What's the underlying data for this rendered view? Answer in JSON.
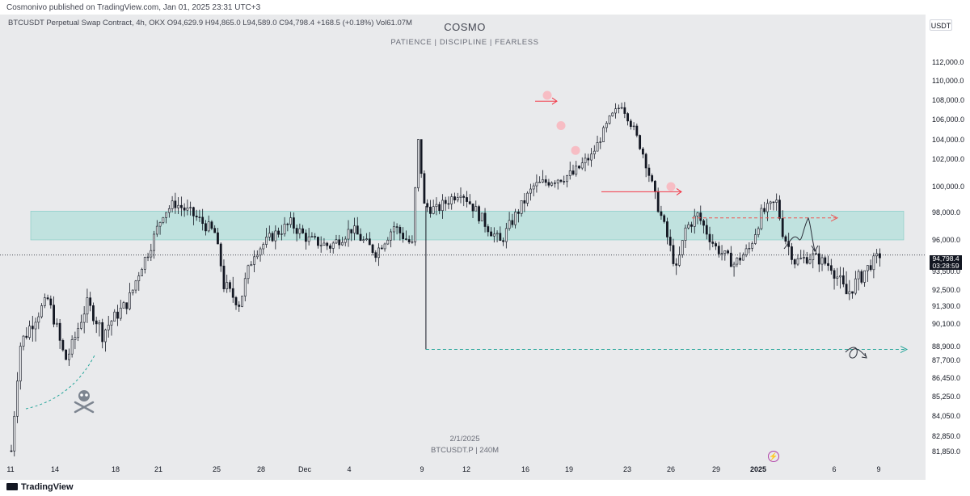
{
  "header": {
    "publisher_line": "Cosmonivo published on TradingView.com, Jan 01, 2025 23:31 UTC+3"
  },
  "symbol_line": "BTCUSDT Perpetual Swap Contract, 4h, OKX  O94,629.9  H94,865.0  L94,589.0  C94,798.4  +168.5 (+0.18%)  Vol61.07M",
  "watermark": {
    "title": "COSMO",
    "subtitle": "PATIENCE   |   DISCIPLINE   |   FEARLESS",
    "date": "2/1/2025",
    "symbol": "BTCUSDT.P  |  240M"
  },
  "price_axis": {
    "currency": "USDT",
    "current_price": "94,798.4",
    "countdown": "03:28:59",
    "ticks": [
      "112,000.0",
      "110,000.0",
      "108,000.0",
      "106,000.0",
      "104,000.0",
      "102,000.0",
      "100,000.0",
      "98,000.0",
      "96,000.0",
      "93,500.0",
      "92,500.0",
      "91,300.0",
      "90,100.0",
      "88,900.0",
      "87,700.0",
      "86,450.0",
      "85,250.0",
      "84,050.0",
      "82,850.0",
      "81,850.0"
    ]
  },
  "time_axis": {
    "ticks": [
      "11",
      "14",
      "18",
      "21",
      "25",
      "28",
      "Dec",
      "4",
      "9",
      "12",
      "16",
      "19",
      "23",
      "26",
      "29",
      "2025",
      "6",
      "9"
    ]
  },
  "footer": {
    "brand": "TradingView"
  },
  "colors": {
    "background": "#e9eaec",
    "candle": "#131722",
    "zone_fill": "#b2dfdb",
    "zone_border": "#80cbc4",
    "accent_red": "#f23645",
    "marker_pink": "#f8b8c0",
    "dashed_teal": "#26a69a",
    "dashed_red": "#ef5350"
  },
  "chart_data": {
    "type": "candlestick",
    "title": "BTCUSDT Perpetual Swap Contract, 4h, OKX",
    "ylabel": "",
    "xlabel": "",
    "ylim": [
      81500,
      113000
    ],
    "grid": false,
    "keypoints": [
      [
        0,
        81900
      ],
      [
        3,
        89000
      ],
      [
        12,
        91800
      ],
      [
        18,
        87800
      ],
      [
        25,
        91500
      ],
      [
        30,
        89600
      ],
      [
        38,
        91500
      ],
      [
        45,
        95000
      ],
      [
        50,
        98000
      ],
      [
        54,
        98700
      ],
      [
        60,
        97800
      ],
      [
        67,
        96500
      ],
      [
        70,
        92800
      ],
      [
        75,
        91500
      ],
      [
        80,
        95000
      ],
      [
        86,
        96300
      ],
      [
        92,
        97200
      ],
      [
        98,
        96000
      ],
      [
        105,
        95500
      ],
      [
        112,
        96800
      ],
      [
        120,
        95000
      ],
      [
        126,
        97000
      ],
      [
        132,
        95600
      ],
      [
        134,
        103800
      ],
      [
        136,
        98500
      ],
      [
        140,
        98200
      ],
      [
        148,
        99700
      ],
      [
        155,
        97500
      ],
      [
        161,
        95800
      ],
      [
        165,
        97400
      ],
      [
        172,
        100000
      ],
      [
        178,
        100500
      ],
      [
        185,
        100900
      ],
      [
        191,
        102300
      ],
      [
        197,
        106000
      ],
      [
        201,
        107600
      ],
      [
        205,
        105000
      ],
      [
        209,
        101800
      ],
      [
        212,
        99200
      ],
      [
        216,
        96200
      ],
      [
        219,
        93600
      ],
      [
        222,
        96800
      ],
      [
        226,
        97800
      ],
      [
        232,
        95400
      ],
      [
        238,
        94100
      ],
      [
        243,
        95300
      ],
      [
        247,
        97900
      ],
      [
        252,
        98800
      ],
      [
        254,
        96600
      ],
      [
        258,
        94300
      ],
      [
        264,
        94700
      ],
      [
        270,
        93900
      ],
      [
        275,
        92200
      ],
      [
        280,
        93300
      ],
      [
        286,
        94798
      ]
    ],
    "zone": {
      "low": 96000,
      "high": 98100
    },
    "current_price": 94798.4,
    "annotations": [
      {
        "type": "arrow",
        "color": "red",
        "from_price": 107900,
        "to_price": 107900
      },
      {
        "type": "arrow",
        "color": "red",
        "from_price": 99600,
        "to_price": 99600
      },
      {
        "type": "dashed-arrow",
        "color": "red",
        "price": 97600
      },
      {
        "type": "dashed-arrow",
        "color": "teal",
        "price": 88650
      },
      {
        "type": "markers",
        "prices": [
          108500,
          105400,
          102900,
          100000
        ]
      }
    ]
  }
}
